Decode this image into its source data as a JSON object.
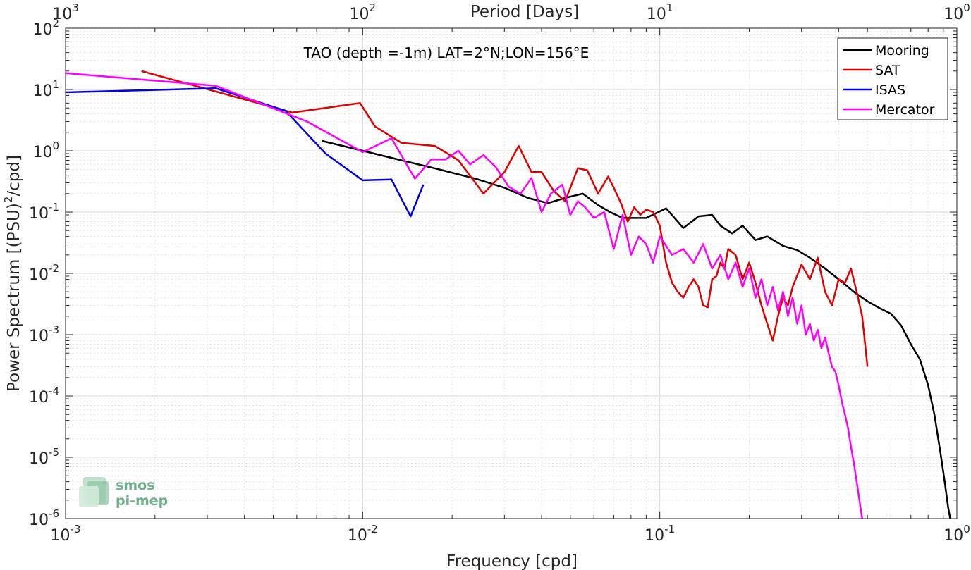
{
  "chart_data": {
    "type": "line",
    "title": "TAO (depth =-1m) LAT=2°N;LON=156°E",
    "xlabel": "Frequency [cpd]",
    "ylabel": "Power Spectrum [(PSU)²/cpd]",
    "ylabel_main": "Power Spectrum [(PSU)",
    "ylabel_sup": "2",
    "ylabel_tail": "/cpd]",
    "x2label": "Period [Days]",
    "xscale": "log",
    "yscale": "log",
    "xlim": [
      0.001,
      1
    ],
    "ylim": [
      1e-06,
      100
    ],
    "grid": true,
    "legend_position": "top-right",
    "x_ticks": [
      {
        "value": 0.001,
        "base": "10",
        "exp": "-3"
      },
      {
        "value": 0.01,
        "base": "10",
        "exp": "-2"
      },
      {
        "value": 0.1,
        "base": "10",
        "exp": "-1"
      },
      {
        "value": 1,
        "base": "10",
        "exp": "0"
      }
    ],
    "x2_ticks": [
      {
        "value": 0.001,
        "base": "10",
        "exp": "3"
      },
      {
        "value": 0.01,
        "base": "10",
        "exp": "2"
      },
      {
        "value": 0.1,
        "base": "10",
        "exp": "1"
      },
      {
        "value": 1,
        "base": "10",
        "exp": "0"
      }
    ],
    "y_ticks": [
      {
        "value": 100,
        "base": "10",
        "exp": "2"
      },
      {
        "value": 10,
        "base": "10",
        "exp": "1"
      },
      {
        "value": 1,
        "base": "10",
        "exp": "0"
      },
      {
        "value": 0.1,
        "base": "10",
        "exp": "-1"
      },
      {
        "value": 0.01,
        "base": "10",
        "exp": "-2"
      },
      {
        "value": 0.001,
        "base": "10",
        "exp": "-3"
      },
      {
        "value": 0.0001,
        "base": "10",
        "exp": "-4"
      },
      {
        "value": 1e-05,
        "base": "10",
        "exp": "-5"
      },
      {
        "value": 1e-06,
        "base": "10",
        "exp": "-6"
      }
    ],
    "series": [
      {
        "name": "Mooring",
        "color": "#000000",
        "points": [
          [
            0.0073,
            1.45
          ],
          [
            0.01,
            1.0
          ],
          [
            0.0135,
            0.7
          ],
          [
            0.018,
            0.5
          ],
          [
            0.024,
            0.35
          ],
          [
            0.03,
            0.25
          ],
          [
            0.036,
            0.17
          ],
          [
            0.042,
            0.14
          ],
          [
            0.048,
            0.17
          ],
          [
            0.055,
            0.2
          ],
          [
            0.062,
            0.13
          ],
          [
            0.068,
            0.1
          ],
          [
            0.075,
            0.08
          ],
          [
            0.09,
            0.08
          ],
          [
            0.105,
            0.115
          ],
          [
            0.12,
            0.055
          ],
          [
            0.135,
            0.085
          ],
          [
            0.15,
            0.09
          ],
          [
            0.16,
            0.06
          ],
          [
            0.175,
            0.045
          ],
          [
            0.19,
            0.06
          ],
          [
            0.21,
            0.035
          ],
          [
            0.23,
            0.04
          ],
          [
            0.26,
            0.028
          ],
          [
            0.29,
            0.024
          ],
          [
            0.32,
            0.018
          ],
          [
            0.36,
            0.012
          ],
          [
            0.4,
            0.008
          ],
          [
            0.45,
            0.005
          ],
          [
            0.5,
            0.0035
          ],
          [
            0.55,
            0.0027
          ],
          [
            0.6,
            0.0022
          ],
          [
            0.65,
            0.0014
          ],
          [
            0.7,
            0.0007
          ],
          [
            0.75,
            0.0004
          ],
          [
            0.8,
            0.00015
          ],
          [
            0.84,
            5e-05
          ],
          [
            0.88,
            1.2e-05
          ],
          [
            0.91,
            4e-06
          ],
          [
            0.935,
            1.5e-06
          ],
          [
            0.95,
            1e-06
          ]
        ]
      },
      {
        "name": "SAT",
        "color": "#e00000",
        "points": [
          [
            0.0018,
            20
          ],
          [
            0.0058,
            4.2
          ],
          [
            0.0098,
            6.0
          ],
          [
            0.011,
            2.5
          ],
          [
            0.0135,
            1.35
          ],
          [
            0.0175,
            1.2
          ],
          [
            0.021,
            0.7
          ],
          [
            0.0255,
            0.2
          ],
          [
            0.03,
            0.45
          ],
          [
            0.0335,
            1.2
          ],
          [
            0.037,
            0.45
          ],
          [
            0.04,
            0.45
          ],
          [
            0.044,
            0.22
          ],
          [
            0.048,
            0.15
          ],
          [
            0.053,
            0.52
          ],
          [
            0.057,
            0.48
          ],
          [
            0.062,
            0.2
          ],
          [
            0.067,
            0.38
          ],
          [
            0.07,
            0.25
          ],
          [
            0.074,
            0.14
          ],
          [
            0.078,
            0.07
          ],
          [
            0.082,
            0.12
          ],
          [
            0.086,
            0.09
          ],
          [
            0.09,
            0.11
          ],
          [
            0.095,
            0.1
          ],
          [
            0.1,
            0.06
          ],
          [
            0.105,
            0.015
          ],
          [
            0.11,
            0.007
          ],
          [
            0.115,
            0.005
          ],
          [
            0.12,
            0.004
          ],
          [
            0.125,
            0.006
          ],
          [
            0.13,
            0.008
          ],
          [
            0.135,
            0.006
          ],
          [
            0.14,
            0.003
          ],
          [
            0.145,
            0.0028
          ],
          [
            0.15,
            0.008
          ],
          [
            0.155,
            0.009
          ],
          [
            0.16,
            0.015
          ],
          [
            0.165,
            0.012
          ],
          [
            0.17,
            0.025
          ],
          [
            0.18,
            0.02
          ],
          [
            0.19,
            0.008
          ],
          [
            0.2,
            0.015
          ],
          [
            0.21,
            0.007
          ],
          [
            0.22,
            0.003
          ],
          [
            0.23,
            0.0015
          ],
          [
            0.24,
            0.0008
          ],
          [
            0.25,
            0.002
          ],
          [
            0.26,
            0.004
          ],
          [
            0.27,
            0.003
          ],
          [
            0.28,
            0.006
          ],
          [
            0.3,
            0.014
          ],
          [
            0.32,
            0.008
          ],
          [
            0.34,
            0.018
          ],
          [
            0.36,
            0.005
          ],
          [
            0.38,
            0.003
          ],
          [
            0.4,
            0.008
          ],
          [
            0.42,
            0.007
          ],
          [
            0.44,
            0.012
          ],
          [
            0.46,
            0.005
          ],
          [
            0.48,
            0.002
          ],
          [
            0.5,
            0.0003
          ]
        ]
      },
      {
        "name": "ISAS",
        "color": "#0000e0",
        "points": [
          [
            0.001,
            9.0
          ],
          [
            0.0032,
            10.5
          ],
          [
            0.0055,
            4.5
          ],
          [
            0.0075,
            0.9
          ],
          [
            0.01,
            0.33
          ],
          [
            0.0125,
            0.34
          ],
          [
            0.0145,
            0.085
          ],
          [
            0.016,
            0.28
          ]
        ]
      },
      {
        "name": "Mercator",
        "color": "#ff00ff",
        "points": [
          [
            0.001,
            18.5
          ],
          [
            0.0032,
            11.5
          ],
          [
            0.0065,
            3.0
          ],
          [
            0.01,
            0.95
          ],
          [
            0.0125,
            1.6
          ],
          [
            0.015,
            0.35
          ],
          [
            0.017,
            0.72
          ],
          [
            0.019,
            0.72
          ],
          [
            0.021,
            1.0
          ],
          [
            0.023,
            0.6
          ],
          [
            0.0255,
            0.85
          ],
          [
            0.028,
            0.55
          ],
          [
            0.031,
            0.26
          ],
          [
            0.034,
            0.2
          ],
          [
            0.037,
            0.36
          ],
          [
            0.04,
            0.1
          ],
          [
            0.043,
            0.2
          ],
          [
            0.047,
            0.28
          ],
          [
            0.05,
            0.09
          ],
          [
            0.053,
            0.15
          ],
          [
            0.056,
            0.12
          ],
          [
            0.06,
            0.08
          ],
          [
            0.065,
            0.1
          ],
          [
            0.07,
            0.025
          ],
          [
            0.075,
            0.09
          ],
          [
            0.08,
            0.02
          ],
          [
            0.085,
            0.04
          ],
          [
            0.09,
            0.03
          ],
          [
            0.095,
            0.015
          ],
          [
            0.1,
            0.04
          ],
          [
            0.11,
            0.02
          ],
          [
            0.12,
            0.025
          ],
          [
            0.13,
            0.015
          ],
          [
            0.14,
            0.03
          ],
          [
            0.15,
            0.012
          ],
          [
            0.16,
            0.02
          ],
          [
            0.17,
            0.008
          ],
          [
            0.18,
            0.015
          ],
          [
            0.19,
            0.006
          ],
          [
            0.2,
            0.012
          ],
          [
            0.21,
            0.004
          ],
          [
            0.22,
            0.008
          ],
          [
            0.23,
            0.003
          ],
          [
            0.24,
            0.006
          ],
          [
            0.25,
            0.0025
          ],
          [
            0.26,
            0.005
          ],
          [
            0.27,
            0.002
          ],
          [
            0.28,
            0.004
          ],
          [
            0.29,
            0.0015
          ],
          [
            0.3,
            0.003
          ],
          [
            0.31,
            0.001
          ],
          [
            0.32,
            0.0015
          ],
          [
            0.33,
            0.0008
          ],
          [
            0.34,
            0.0012
          ],
          [
            0.35,
            0.0006
          ],
          [
            0.36,
            0.0009
          ],
          [
            0.37,
            0.0005
          ],
          [
            0.38,
            0.0003
          ],
          [
            0.39,
            0.00025
          ],
          [
            0.4,
            0.00015
          ],
          [
            0.41,
            8e-05
          ],
          [
            0.42,
            5e-05
          ],
          [
            0.43,
            3e-05
          ],
          [
            0.44,
            1.5e-05
          ],
          [
            0.45,
            8e-06
          ],
          [
            0.46,
            4e-06
          ],
          [
            0.47,
            2e-06
          ],
          [
            0.48,
            1e-06
          ]
        ]
      }
    ]
  },
  "logo": {
    "line1": "smos",
    "line2": "pi-mep"
  }
}
